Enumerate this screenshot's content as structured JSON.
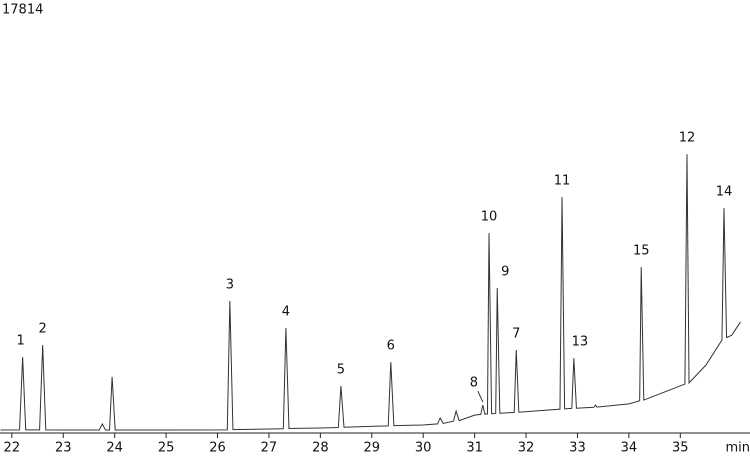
{
  "chart_data": {
    "type": "line",
    "x_label": "min",
    "xlim": [
      21.77,
      36.2
    ],
    "xticks": [
      22,
      23,
      24,
      25,
      26,
      27,
      28,
      29,
      30,
      31,
      32,
      33,
      34,
      35
    ],
    "ylim": [
      0,
      17814
    ],
    "yticks": [
      17814
    ],
    "series": [
      {
        "color": "#333333",
        "x": [
          21.78,
          22.15,
          22.21,
          22.27,
          22.54,
          22.6,
          22.66,
          23.0,
          23.7,
          23.76,
          23.82,
          23.9,
          23.95,
          24.01,
          25.0,
          26.19,
          26.24,
          26.3,
          27.28,
          27.33,
          27.39,
          28.0,
          28.35,
          28.4,
          28.46,
          29.32,
          29.37,
          29.43,
          30.0,
          30.28,
          30.33,
          30.39,
          30.59,
          30.64,
          30.7,
          31.0,
          31.12,
          31.16,
          31.2,
          31.25,
          31.28,
          31.33,
          31.41,
          31.44,
          31.49,
          31.77,
          31.81,
          31.86,
          32.66,
          32.7,
          32.75,
          32.89,
          32.93,
          32.98,
          33.32,
          33.35,
          33.38,
          34.0,
          34.21,
          34.24,
          34.29,
          35.09,
          35.13,
          35.17,
          35.5,
          35.81,
          35.85,
          35.9,
          36.0,
          36.17
        ],
        "values": [
          125,
          130,
          3180,
          130,
          130,
          3690,
          130,
          125,
          125,
          380,
          125,
          125,
          2350,
          125,
          125,
          130,
          5530,
          140,
          180,
          4400,
          190,
          210,
          230,
          1970,
          240,
          300,
          2970,
          310,
          335,
          380,
          630,
          400,
          500,
          920,
          520,
          750,
          780,
          1170,
          790,
          800,
          8380,
          810,
          820,
          6080,
          830,
          860,
          3480,
          870,
          1000,
          9890,
          1010,
          1030,
          3140,
          1040,
          1080,
          1170,
          1085,
          1220,
          1350,
          6960,
          1380,
          2050,
          11690,
          2100,
          2850,
          3900,
          9430,
          4000,
          4100,
          4650
        ]
      }
    ],
    "annotations": [
      {
        "label": "1",
        "x": 22.21,
        "y": 3180
      },
      {
        "label": "2",
        "x": 22.6,
        "y": 3690
      },
      {
        "label": "3",
        "x": 26.24,
        "y": 5530
      },
      {
        "label": "4",
        "x": 27.33,
        "y": 4400
      },
      {
        "label": "5",
        "x": 28.4,
        "y": 1970
      },
      {
        "label": "6",
        "x": 29.37,
        "y": 2970
      },
      {
        "label": "7",
        "x": 31.81,
        "y": 3480
      },
      {
        "label": "8",
        "x": 31.16,
        "y": 1170
      },
      {
        "label": "9",
        "x": 31.44,
        "y": 6080
      },
      {
        "label": "10",
        "x": 31.28,
        "y": 8380
      },
      {
        "label": "11",
        "x": 32.7,
        "y": 9890
      },
      {
        "label": "12",
        "x": 35.13,
        "y": 11690
      },
      {
        "label": "13",
        "x": 32.93,
        "y": 3140
      },
      {
        "label": "14",
        "x": 35.85,
        "y": 9430
      },
      {
        "label": "15",
        "x": 34.24,
        "y": 6960
      }
    ]
  }
}
